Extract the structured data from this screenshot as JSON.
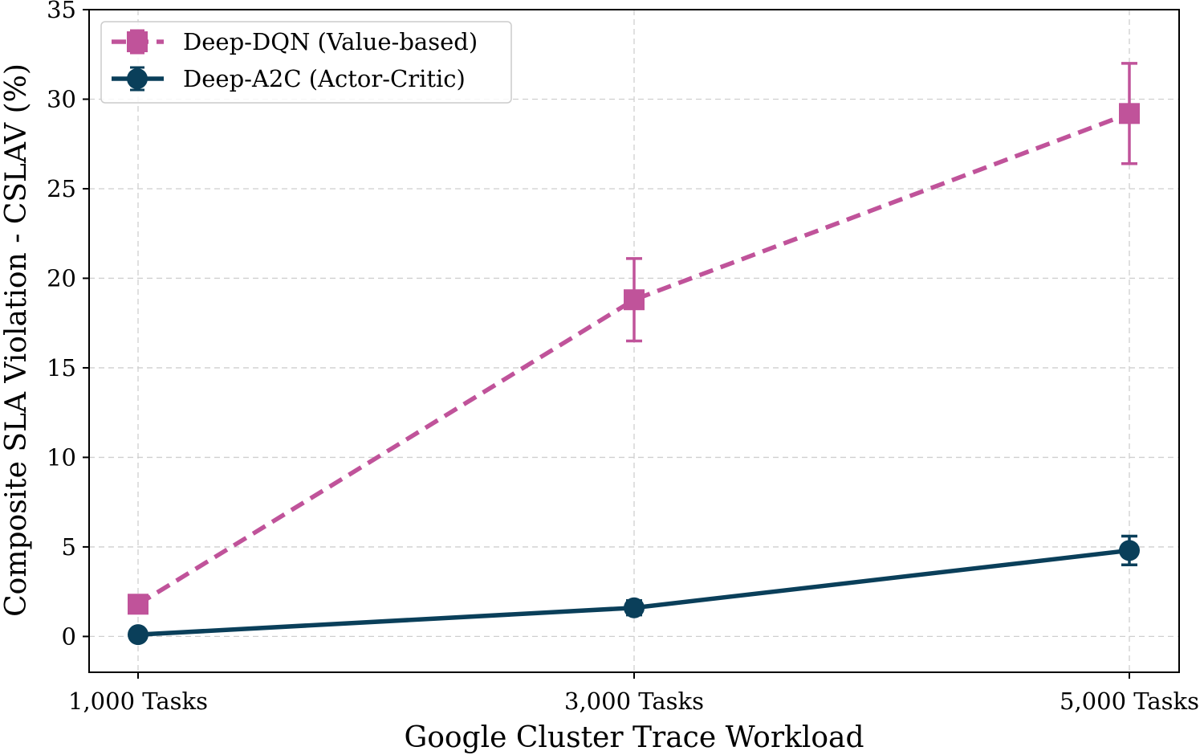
{
  "chart_data": {
    "type": "line",
    "xlabel": "Google Cluster Trace Workload",
    "ylabel": "Composite SLA Violation - CSLAV (%)",
    "categories": [
      "1,000 Tasks",
      "3,000 Tasks",
      "5,000 Tasks"
    ],
    "ylim": [
      -2,
      35
    ],
    "yticks": [
      0,
      5,
      10,
      15,
      20,
      25,
      30,
      35
    ],
    "grid": true,
    "legend_position": "top-left",
    "series": [
      {
        "name": "Deep-DQN (Value-based)",
        "values": [
          1.8,
          18.8,
          29.2
        ],
        "errors": [
          0.3,
          2.3,
          2.8
        ],
        "color": "#c0539a",
        "line_style": "dashed",
        "marker": "square"
      },
      {
        "name": "Deep-A2C (Actor-Critic)",
        "values": [
          0.1,
          1.6,
          4.8
        ],
        "errors": [
          0.1,
          0.4,
          0.8
        ],
        "color": "#0a3f5a",
        "line_style": "solid",
        "marker": "circle"
      }
    ]
  }
}
